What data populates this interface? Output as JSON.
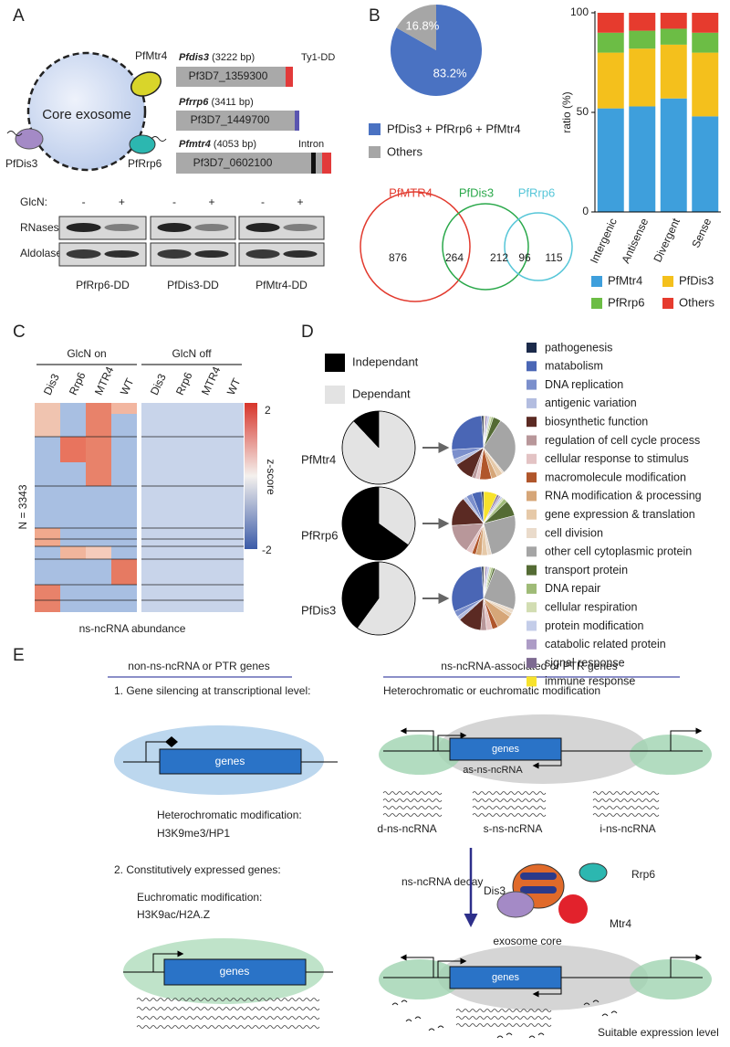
{
  "panels": {
    "a": {
      "label": "A",
      "complex": "Core exosome",
      "proteins": [
        "PfMtr4",
        "PfDis3",
        "PfRrp6"
      ],
      "genes": [
        {
          "name": "Pfdis3",
          "size": "(3222 bp)",
          "id": "Pf3D7_1359300"
        },
        {
          "name": "Pfrrp6",
          "size": "(3411 bp)",
          "id": "Pf3D7_1449700"
        },
        {
          "name": "Pfmtr4",
          "size": "(4053 bp)",
          "id": "Pf3D7_0602100"
        }
      ],
      "tag": "Ty1-DD",
      "intron": "Intron",
      "blot": {
        "treatment": "GlcN:",
        "signs": [
          "-",
          "+"
        ],
        "rows": [
          "RNases",
          "Aldolase"
        ],
        "strains": [
          "PfRrp6-DD",
          "PfDis3-DD",
          "PfMtr4-DD"
        ]
      }
    },
    "b": {
      "label": "B",
      "venn": {
        "sets": [
          "PfMTR4",
          "PfDis3",
          "PfRrp6"
        ],
        "counts": [
          "876",
          "264",
          "212",
          "96",
          "115"
        ]
      }
    },
    "c": {
      "label": "C",
      "groups": [
        "GlcN on",
        "GlcN off"
      ],
      "columns": [
        "Dis3",
        "Rrp6",
        "MTR4",
        "WT"
      ],
      "n": "N = 3343",
      "scale": [
        "2",
        "z-score",
        "-2"
      ],
      "caption": "ns-ncRNA abundance"
    },
    "d": {
      "label": "D"
    },
    "e": {
      "label": "E",
      "left": {
        "heading": "non-ns-ncRNA or PTR genes",
        "step1": "1. Gene silencing at transcriptional level:",
        "gene": "genes",
        "mod1": "Heterochromatic modification:",
        "mark1": "H3K9me3/HP1",
        "step2": "2. Constitutively expressed genes:",
        "mod2": "Euchromatic modification:",
        "mark2": "H3K9ac/H2A.Z"
      },
      "right": {
        "heading": "ns-ncRNA-associated or PTR genes",
        "sub": "Heterochromatic or euchromatic modification",
        "antisense": "as-ns-ncRNA",
        "classes": [
          "d-ns-ncRNA",
          "s-ns-ncRNA",
          "i-ns-ncRNA"
        ],
        "decay": "ns-ncRNA decay",
        "rrp6": "Rrp6",
        "dis3": "Dis3",
        "mtr4": "Mtr4",
        "core": "exosome core",
        "result": "Suitable expression level"
      }
    }
  },
  "chart_data": [
    {
      "type": "pie",
      "categories": [
        "PfDis3 + PfRrp6 + PfMtr4",
        "Others"
      ],
      "values": [
        83.2,
        16.8
      ],
      "value_labels": [
        "83.2%",
        "16.8%"
      ],
      "colors": [
        "#4a72c2",
        "#a6a6a6"
      ]
    },
    {
      "type": "stacked-bar",
      "categories": [
        "Intergenic",
        "Antisense",
        "Divergent",
        "Sense"
      ],
      "ylabel": "ratio (%)",
      "ylim": [
        0,
        100
      ],
      "yticks": [
        0,
        50,
        100
      ],
      "series": [
        {
          "name": "PfMtr4",
          "color": "#3e9fdc",
          "values": [
            52,
            53,
            57,
            48
          ]
        },
        {
          "name": "PfDis3",
          "color": "#f4c01c",
          "values": [
            28,
            29,
            27,
            32
          ]
        },
        {
          "name": "PfRrp6",
          "color": "#6cbd45",
          "values": [
            10,
            9,
            8,
            10
          ]
        },
        {
          "name": "Others",
          "color": "#e63b2e",
          "values": [
            10,
            9,
            8,
            10
          ]
        }
      ]
    },
    {
      "type": "pie-grid",
      "dependency": {
        "categories": [
          "Independant",
          "Dependant"
        ],
        "colors": [
          "#000000",
          "#e3e3e3"
        ],
        "series": [
          {
            "name": "PfMtr4",
            "values": [
              12,
              88
            ]
          },
          {
            "name": "PfRrp6",
            "values": [
              65,
              35
            ]
          },
          {
            "name": "PfDis3",
            "values": [
              40,
              60
            ]
          }
        ]
      },
      "function": {
        "categories": [
          "pathogenesis",
          "matabolism",
          "DNA replication",
          "antigenic variation",
          "biosynthetic function",
          "regulation of cell cycle process",
          "cellular response to stimulus",
          "macromolecule modification",
          "RNA modification & processing",
          "gene expression & translation",
          "cell division",
          "other cell cytoplasmic protein",
          "transport protein",
          "DNA repair",
          "cellular respiration",
          "protein modification",
          "catabolic related protein",
          "signal response",
          "immune response"
        ],
        "colors": [
          "#1b2a4a",
          "#4a66b5",
          "#7b8fcc",
          "#b3bde0",
          "#5b2a23",
          "#b8979a",
          "#e3c3c4",
          "#b0562b",
          "#d6a678",
          "#e6c9a8",
          "#eadbcb",
          "#a5a5a5",
          "#546b34",
          "#9fbb77",
          "#d2ddb2",
          "#c4cde9",
          "#ad9cc6",
          "#7d6a91",
          "#f7e22c"
        ],
        "series": [
          {
            "values": [
              1,
              25,
              5,
              3,
              10,
              2,
              2,
              6,
              3,
              3,
              1,
              30,
              4,
              1,
              1,
              1,
              1,
              0.5,
              0.5
            ]
          },
          {
            "values": [
              1,
              5,
              3,
              2,
              15,
              15,
              3,
              2,
              3,
              3,
              2,
              25,
              8,
              2,
              1,
              1,
              1,
              1,
              7
            ]
          },
          {
            "values": [
              1,
              31,
              3,
              2,
              12,
              3,
              3,
              3,
              8,
              2,
              2,
              25,
              1,
              1,
              1,
              1,
              1,
              0.5,
              0.5
            ]
          }
        ]
      }
    }
  ]
}
